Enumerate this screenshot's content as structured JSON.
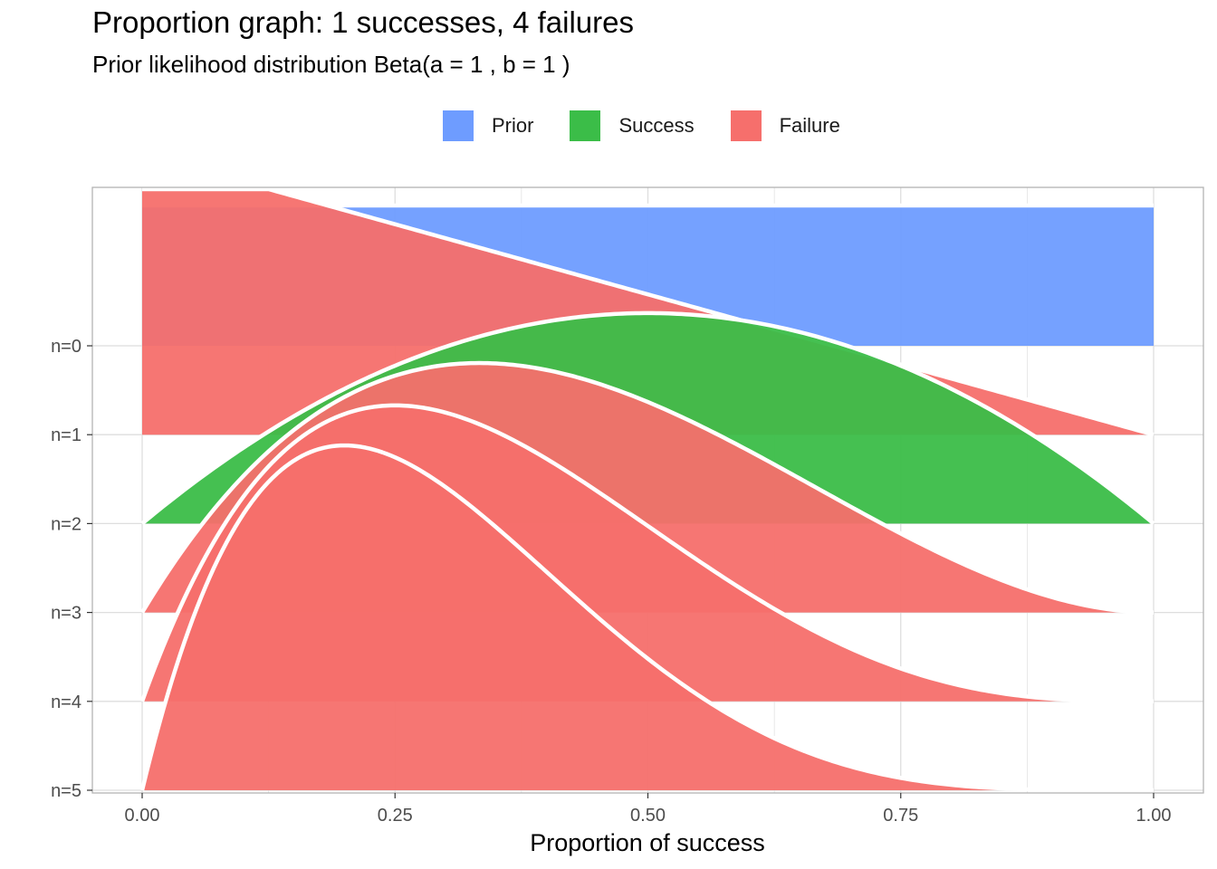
{
  "chart_data": {
    "type": "area",
    "title": "Proportion graph: 1 successes, 4 failures",
    "subtitle": "Prior likelihood distribution Beta(a = 1 , b = 1 )",
    "xlabel": "Proportion of success",
    "ylabel": "",
    "xlim": [
      0,
      1
    ],
    "x_ticks": [
      "0.00",
      "0.25",
      "0.50",
      "0.75",
      "1.00"
    ],
    "y_categories": [
      "n=0",
      "n=1",
      "n=2",
      "n=3",
      "n=4",
      "n=5"
    ],
    "legend": {
      "position": "top",
      "entries": [
        {
          "label": "Prior",
          "color": "#6e9cff"
        },
        {
          "label": "Success",
          "color": "#3bbd48"
        },
        {
          "label": "Failure",
          "color": "#f66f6c"
        }
      ]
    },
    "grid": true,
    "series": [
      {
        "row": "n=0",
        "type": "Prior",
        "distribution": "Beta(1,1)",
        "a": 1,
        "b": 1
      },
      {
        "row": "n=1",
        "type": "Failure",
        "distribution": "Beta(1,2)",
        "a": 1,
        "b": 2
      },
      {
        "row": "n=2",
        "type": "Success",
        "distribution": "Beta(2,2)",
        "a": 2,
        "b": 2
      },
      {
        "row": "n=3",
        "type": "Failure",
        "distribution": "Beta(2,3)",
        "a": 2,
        "b": 3
      },
      {
        "row": "n=4",
        "type": "Failure",
        "distribution": "Beta(2,4)",
        "a": 2,
        "b": 4
      },
      {
        "row": "n=5",
        "type": "Failure",
        "distribution": "Beta(2,5)",
        "a": 2,
        "b": 5
      }
    ]
  }
}
